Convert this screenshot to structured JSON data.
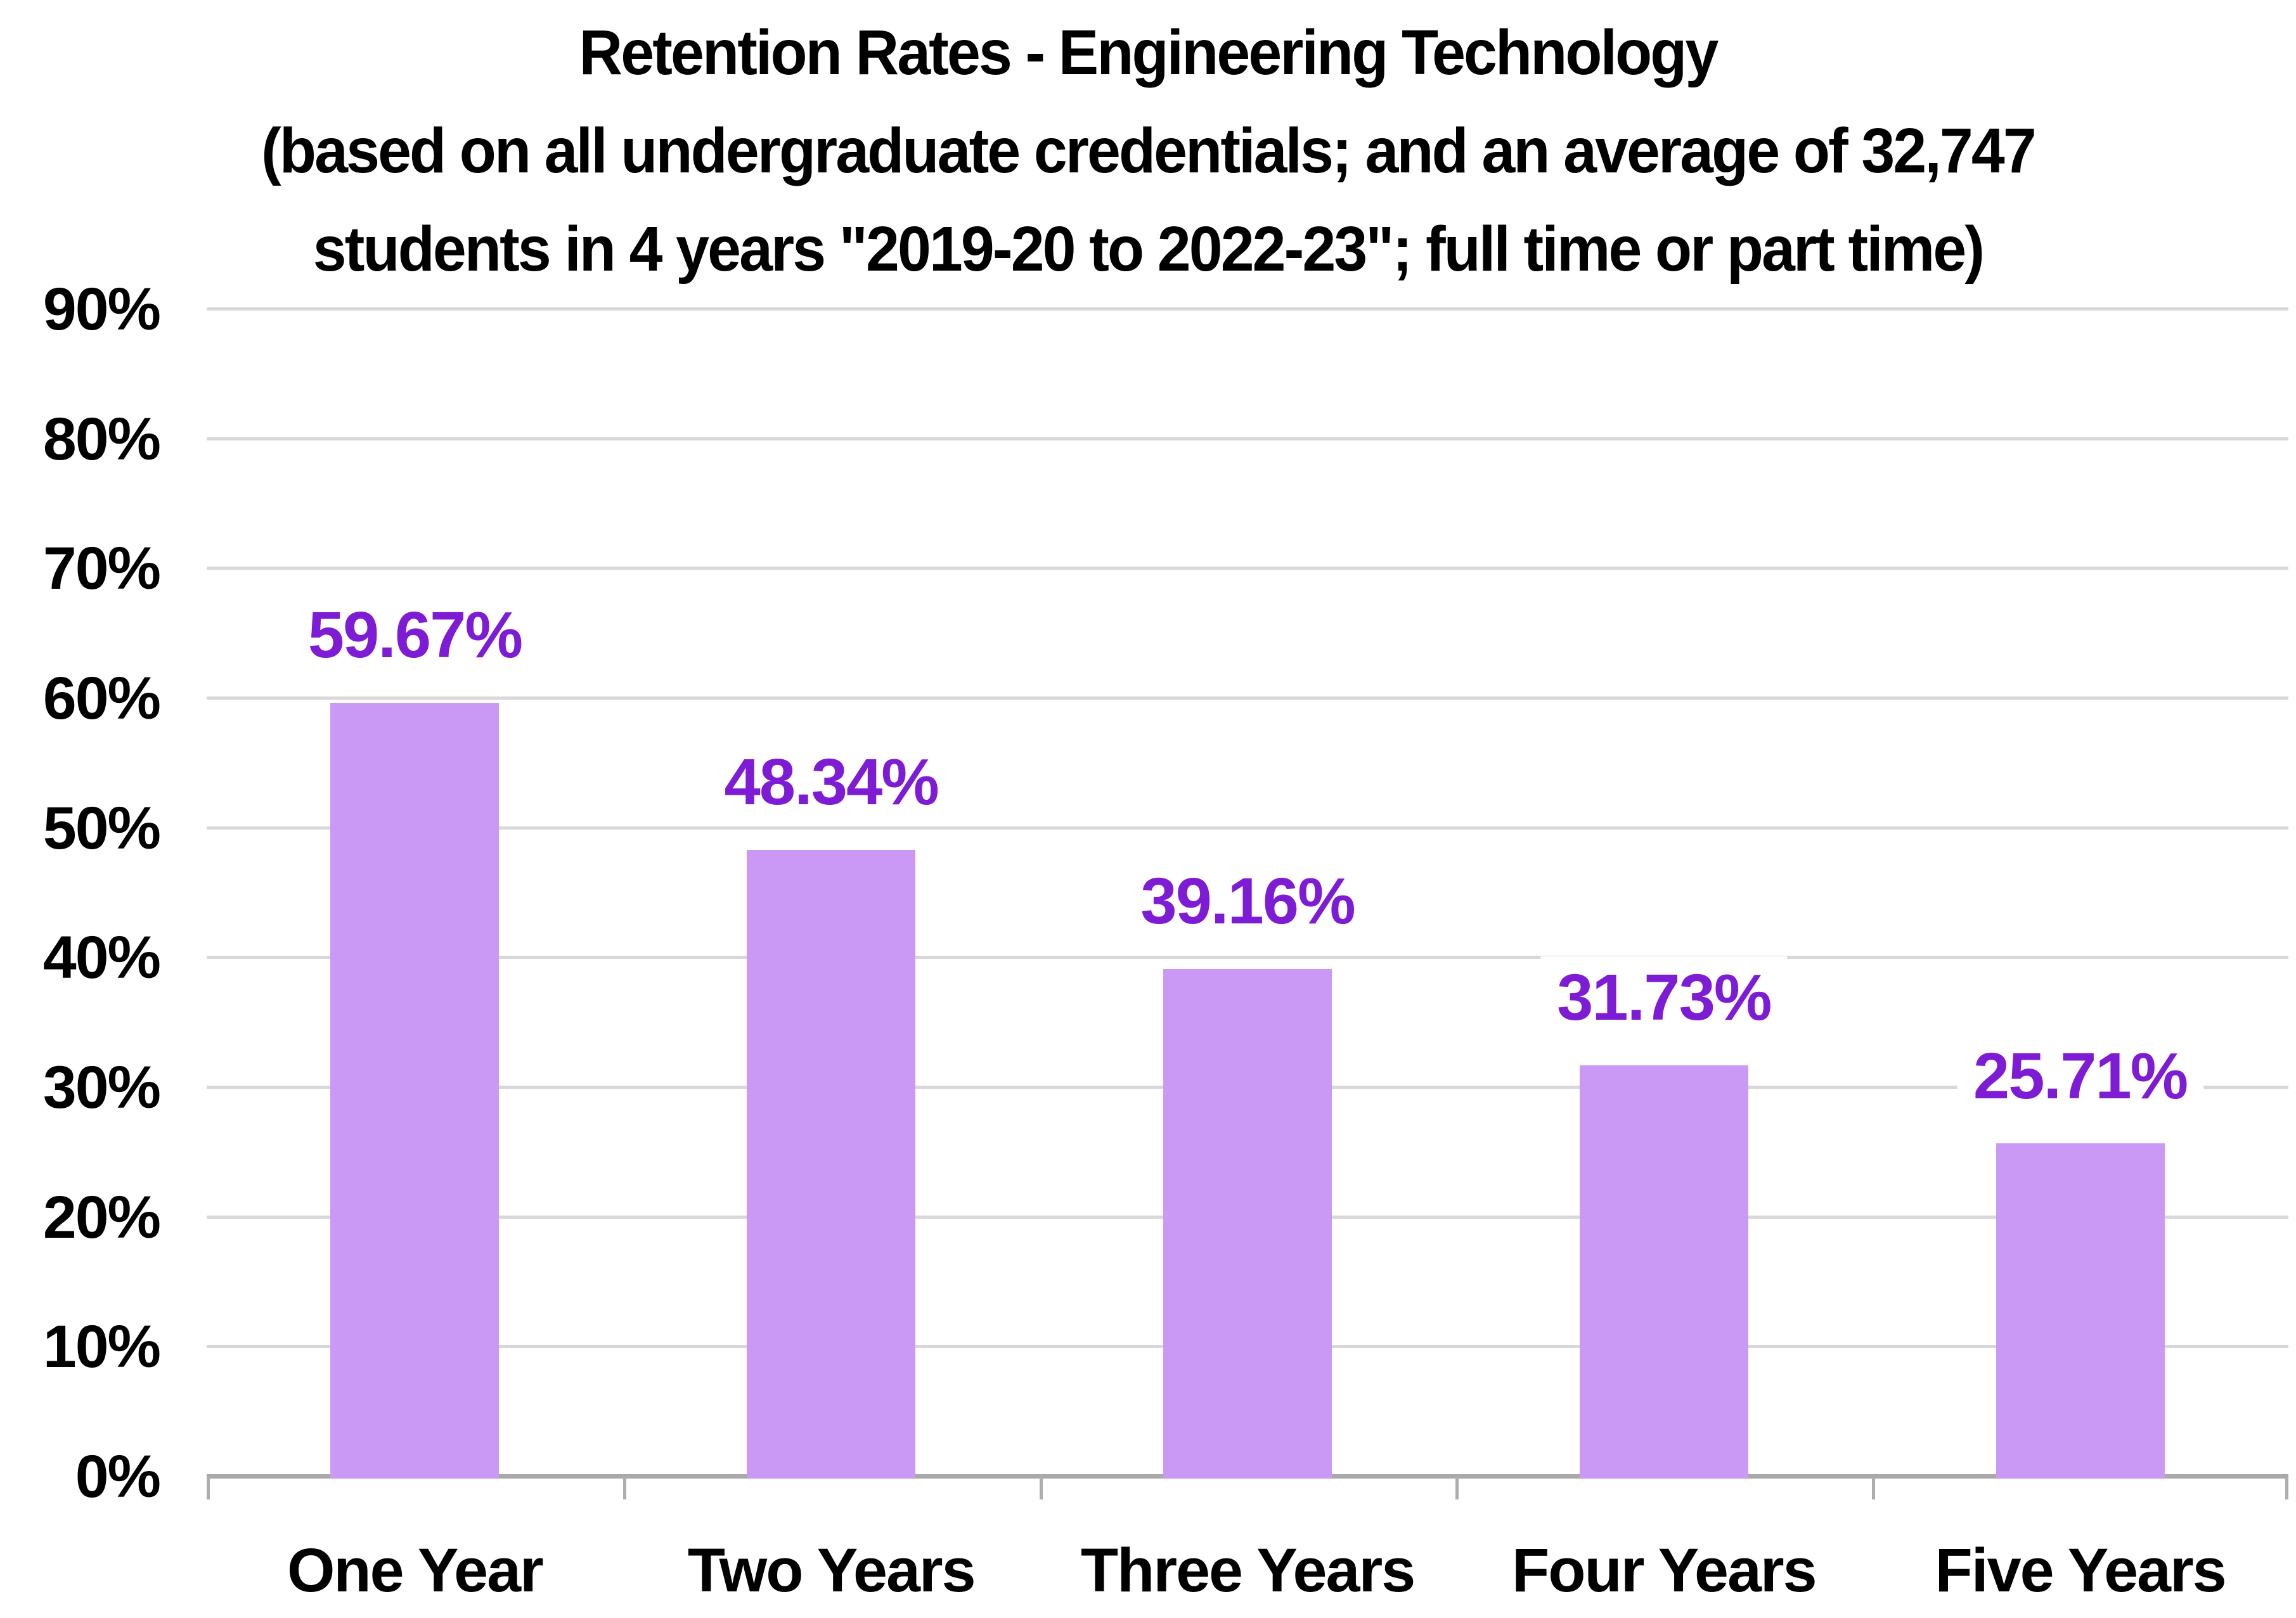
{
  "chart_data": {
    "type": "bar",
    "title": "Retention Rates - Engineering Technology (based on all undergraduate credentials; and an average of 32,747 students in 4 years \"2019-20 to 2022-23\"; full time or part time)",
    "title_lines": [
      "Retention Rates - Engineering Technology",
      "(based on all undergraduate credentials; and an average of 32,747",
      "students in 4 years \"2019-20 to 2022-23\"; full time or part time)"
    ],
    "categories": [
      "One Year",
      "Two Years",
      "Three Years",
      "Four Years",
      "Five Years"
    ],
    "values": [
      59.67,
      48.34,
      39.16,
      31.73,
      25.71
    ],
    "value_labels": [
      "59.67%",
      "48.34%",
      "39.16%",
      "31.73%",
      "25.71%"
    ],
    "xlabel": "",
    "ylabel": "",
    "ylim": [
      0,
      90
    ],
    "y_ticks": [
      {
        "value": 0,
        "label": "0%"
      },
      {
        "value": 10,
        "label": "10%"
      },
      {
        "value": 20,
        "label": "20%"
      },
      {
        "value": 30,
        "label": "30%"
      },
      {
        "value": 40,
        "label": "40%"
      },
      {
        "value": 50,
        "label": "50%"
      },
      {
        "value": 60,
        "label": "60%"
      },
      {
        "value": 70,
        "label": "70%"
      },
      {
        "value": 80,
        "label": "80%"
      },
      {
        "value": 90,
        "label": "90%"
      }
    ],
    "grid": true,
    "legend": "none",
    "colors": {
      "bar_fill": "#ca99f6",
      "data_label": "#7e1bd4",
      "gridline": "#d8d8d8",
      "axis_line": "#a9a9a9",
      "text": "#000000",
      "background": "#ffffff"
    }
  }
}
